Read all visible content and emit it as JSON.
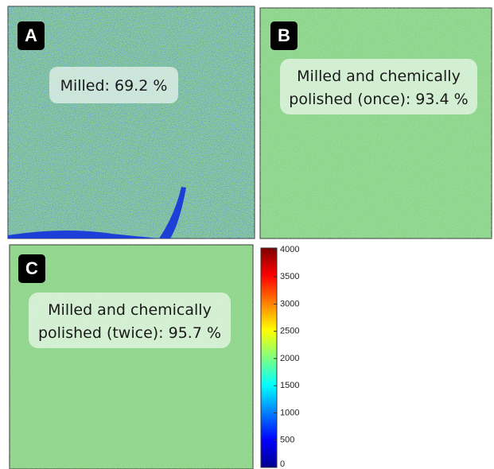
{
  "panels": [
    {
      "letter": "A",
      "caption": [
        "Milled: 69.2 %"
      ]
    },
    {
      "letter": "B",
      "caption": [
        "Milled and chemically",
        "polished (once): 93.4 %"
      ]
    },
    {
      "letter": "C",
      "caption": [
        "Milled and chemically",
        "polished (twice): 95.7 %"
      ]
    }
  ],
  "colorbar": {
    "lim": [
      0,
      4000
    ],
    "ticks": [
      0,
      500,
      1000,
      1500,
      2000,
      2500,
      3000,
      3500,
      4000
    ]
  }
}
